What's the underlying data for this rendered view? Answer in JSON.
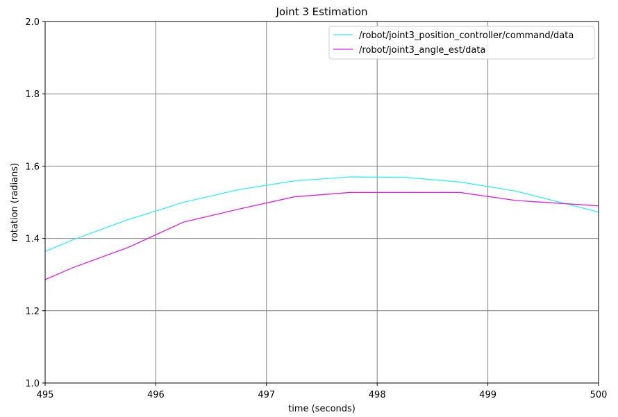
{
  "chart_data": {
    "type": "line",
    "title": "Joint 3 Estimation",
    "xlabel": "time (seconds)",
    "ylabel": "rotation (radians)",
    "xlim": [
      495,
      500
    ],
    "ylim": [
      1.0,
      2.0
    ],
    "xticks": [
      "495",
      "496",
      "497",
      "498",
      "499",
      "500"
    ],
    "yticks": [
      "1.0",
      "1.2",
      "1.4",
      "1.6",
      "1.8",
      "2.0"
    ],
    "grid": true,
    "legend_position": "top-right",
    "series": [
      {
        "name": "/robot/joint3_position_controller/command/data",
        "color": "#33f0f0",
        "x": [
          495.0,
          495.25,
          495.75,
          496.25,
          496.75,
          497.25,
          497.75,
          498.25,
          498.75,
          499.25,
          500.0
        ],
        "y": [
          1.364,
          1.396,
          1.452,
          1.5,
          1.535,
          1.559,
          1.57,
          1.569,
          1.556,
          1.531,
          1.473
        ]
      },
      {
        "name": "/robot/joint3_angle_est/data",
        "color": "#e020e0",
        "x": [
          495.0,
          495.25,
          495.75,
          496.25,
          496.75,
          497.25,
          497.75,
          498.25,
          498.75,
          499.25,
          500.0
        ],
        "y": [
          1.286,
          1.319,
          1.375,
          1.445,
          1.481,
          1.515,
          1.527,
          1.527,
          1.527,
          1.505,
          1.49
        ]
      }
    ]
  }
}
